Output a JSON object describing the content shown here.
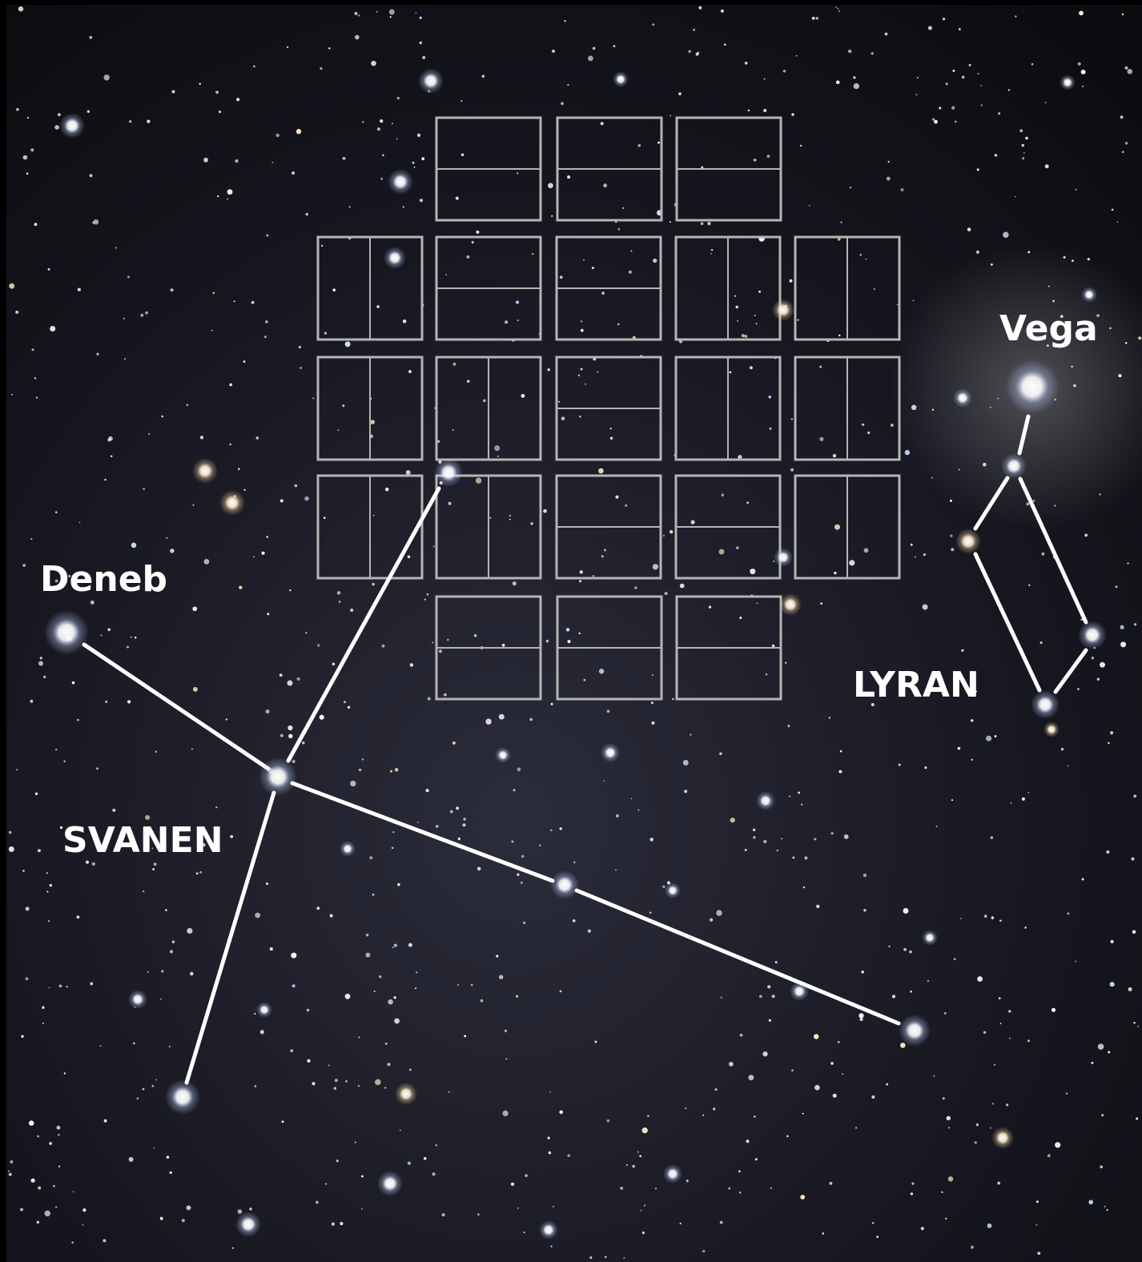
{
  "labels": {
    "deneb": "Deneb",
    "vega": "Vega",
    "svanen": "SVANEN",
    "lyran": "LYRAN"
  }
}
